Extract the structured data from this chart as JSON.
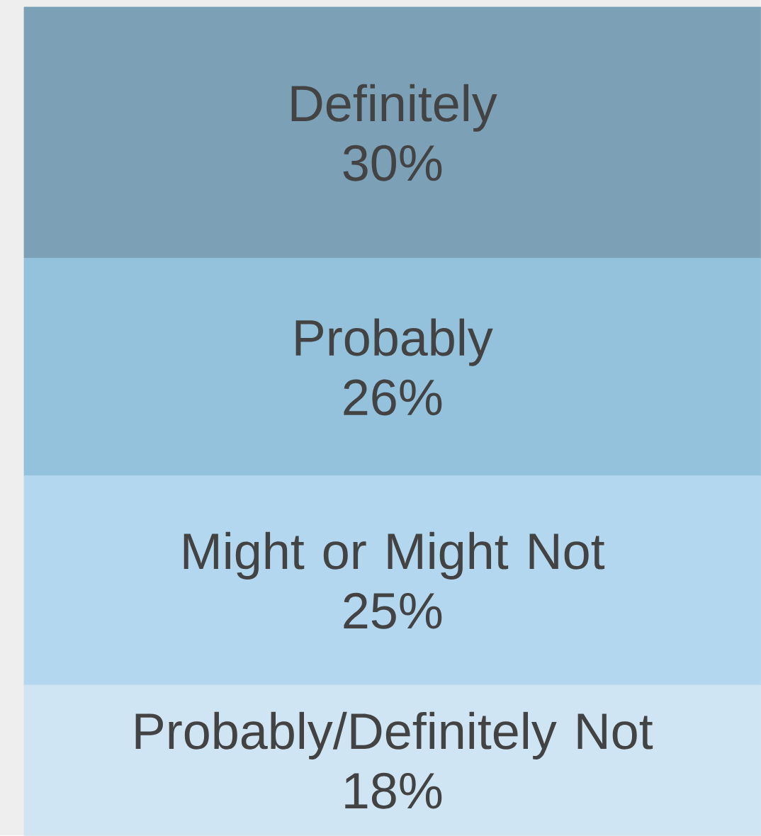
{
  "chart_data": {
    "type": "bar",
    "stacked": true,
    "categories": [
      null
    ],
    "series": [
      {
        "name": "Probably/Definitely Not",
        "color": "#d0e5f3",
        "values": [
          18
        ],
        "value_labels": [
          "18%"
        ]
      },
      {
        "name": "Might or Might Not",
        "color": "#b3d7ef",
        "values": [
          25
        ],
        "value_labels": [
          "25%"
        ]
      },
      {
        "name": "Probably",
        "color": "#94c1dc",
        "values": [
          26
        ],
        "value_labels": [
          "26%"
        ]
      },
      {
        "name": "Definitely",
        "color": "#7ca1b7",
        "values": [
          30
        ],
        "value_labels": [
          "30%"
        ]
      }
    ]
  }
}
